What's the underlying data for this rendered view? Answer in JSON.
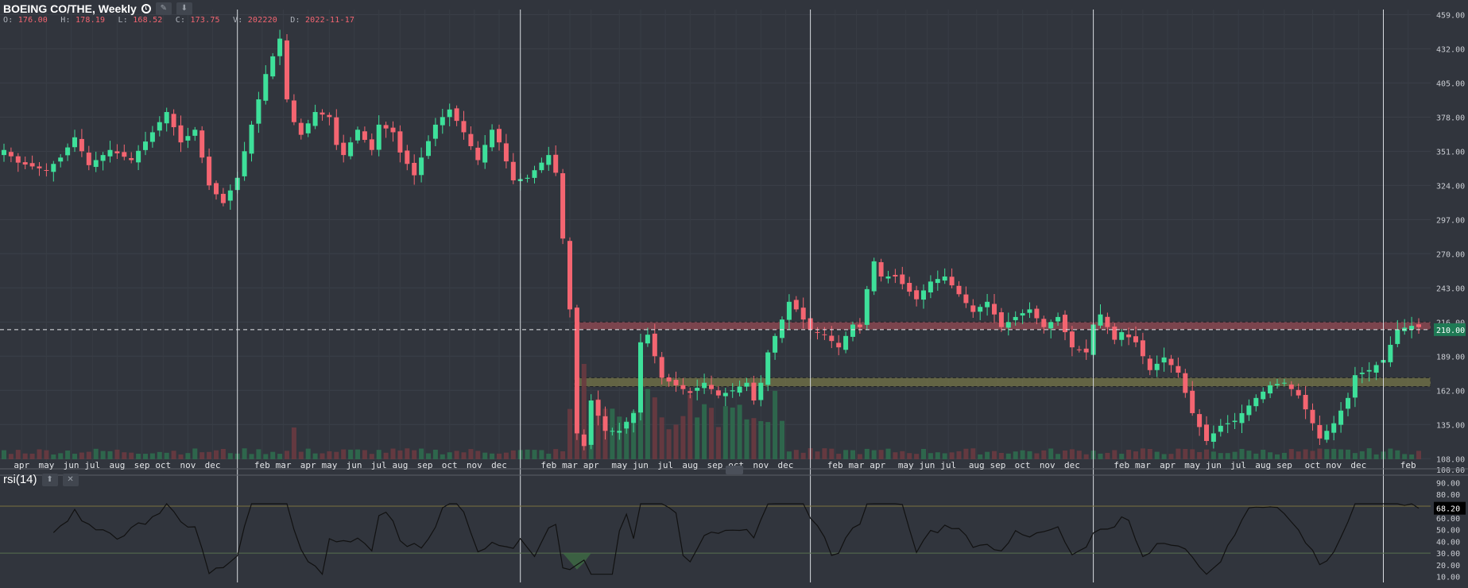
{
  "header": {
    "title": "BOEING CO/THE, Weekly",
    "legend": [
      {
        "label": "O:",
        "value": "176.00"
      },
      {
        "label": "H:",
        "value": "178.19"
      },
      {
        "label": "L:",
        "value": "168.52"
      },
      {
        "label": "C:",
        "value": "173.75"
      },
      {
        "label": "V:",
        "value": "202220"
      },
      {
        "label": "D:",
        "value": "2022-11-17"
      }
    ],
    "edit_icon": "pencil-icon",
    "move_down_icon": "arrow-down-icon"
  },
  "rsi_panel": {
    "title": "rsi(14)",
    "move_icon": "arrow-down-icon",
    "close_icon": "close-icon",
    "current_value": "68.20"
  },
  "colors": {
    "background": "#31353d",
    "up": "#3ee09a",
    "down": "#f46571",
    "resistance_zone": "#b8515b",
    "support_zone": "#8c8a4a",
    "rsi_line": "#111111",
    "price_tag": "#1f7a55"
  },
  "chart_data": [
    {
      "type": "candlestick",
      "title": "BOEING CO/THE, Weekly",
      "y_ticks": [
        108,
        135,
        162,
        189,
        216,
        243,
        270,
        297,
        324,
        351,
        378,
        405,
        432,
        459
      ],
      "y_tick_labels": [
        "108.00",
        "135.00",
        "162.00",
        "189.00",
        "216.00",
        "243.00",
        "270.00",
        "297.00",
        "324.00",
        "351.00",
        "378.00",
        "405.00",
        "432.00",
        "459.00"
      ],
      "y_bottom_label": "100.00",
      "ylim": [
        100,
        463
      ],
      "current_price": 210,
      "current_price_label": "210.00",
      "zones": [
        {
          "name": "resistance",
          "from_week": 81,
          "low": 210,
          "high": 216
        },
        {
          "name": "support",
          "from_week": 81,
          "low": 165,
          "high": 172
        }
      ],
      "year_separators": [
        33,
        73,
        114,
        154,
        195
      ],
      "x_month_labels": [
        {
          "w": 2.5,
          "t": "apr"
        },
        {
          "w": 6,
          "t": "may"
        },
        {
          "w": 9.5,
          "t": "jun"
        },
        {
          "w": 12.5,
          "t": "jul"
        },
        {
          "w": 16,
          "t": "aug"
        },
        {
          "w": 19.5,
          "t": "sep"
        },
        {
          "w": 22.5,
          "t": "oct"
        },
        {
          "w": 26,
          "t": "nov"
        },
        {
          "w": 29.5,
          "t": "dec"
        },
        {
          "w": 36.5,
          "t": "feb"
        },
        {
          "w": 39.5,
          "t": "mar"
        },
        {
          "w": 43,
          "t": "apr"
        },
        {
          "w": 46,
          "t": "may"
        },
        {
          "w": 49.5,
          "t": "jun"
        },
        {
          "w": 53,
          "t": "jul"
        },
        {
          "w": 56,
          "t": "aug"
        },
        {
          "w": 59.5,
          "t": "sep"
        },
        {
          "w": 63,
          "t": "oct"
        },
        {
          "w": 66.5,
          "t": "nov"
        },
        {
          "w": 70,
          "t": "dec"
        },
        {
          "w": 77,
          "t": "feb"
        },
        {
          "w": 80,
          "t": "mar"
        },
        {
          "w": 83,
          "t": "apr"
        },
        {
          "w": 87,
          "t": "may"
        },
        {
          "w": 90,
          "t": "jun"
        },
        {
          "w": 93.5,
          "t": "jul"
        },
        {
          "w": 97,
          "t": "aug"
        },
        {
          "w": 100.5,
          "t": "sep"
        },
        {
          "w": 103.5,
          "t": "oct"
        },
        {
          "w": 107,
          "t": "nov"
        },
        {
          "w": 110.5,
          "t": "dec"
        },
        {
          "w": 117.5,
          "t": "feb"
        },
        {
          "w": 120.5,
          "t": "mar"
        },
        {
          "w": 123.5,
          "t": "apr"
        },
        {
          "w": 127.5,
          "t": "may"
        },
        {
          "w": 130.5,
          "t": "jun"
        },
        {
          "w": 133.5,
          "t": "jul"
        },
        {
          "w": 137.5,
          "t": "aug"
        },
        {
          "w": 140.5,
          "t": "sep"
        },
        {
          "w": 144,
          "t": "oct"
        },
        {
          "w": 147.5,
          "t": "nov"
        },
        {
          "w": 151,
          "t": "dec"
        },
        {
          "w": 158,
          "t": "feb"
        },
        {
          "w": 161,
          "t": "mar"
        },
        {
          "w": 164.5,
          "t": "apr"
        },
        {
          "w": 168,
          "t": "may"
        },
        {
          "w": 171,
          "t": "jun"
        },
        {
          "w": 174.5,
          "t": "jul"
        },
        {
          "w": 178,
          "t": "aug"
        },
        {
          "w": 181,
          "t": "sep"
        },
        {
          "w": 185,
          "t": "oct"
        },
        {
          "w": 188,
          "t": "nov"
        },
        {
          "w": 191.5,
          "t": "dec"
        },
        {
          "w": 198.5,
          "t": "feb"
        }
      ],
      "close_anchors": [
        [
          0,
          352
        ],
        [
          2,
          342
        ],
        [
          6,
          336
        ],
        [
          8,
          346
        ],
        [
          10,
          362
        ],
        [
          12,
          340
        ],
        [
          15,
          352
        ],
        [
          18,
          344
        ],
        [
          21,
          366
        ],
        [
          23,
          382
        ],
        [
          25,
          358
        ],
        [
          27,
          368
        ],
        [
          29,
          324
        ],
        [
          31,
          310
        ],
        [
          33,
          330
        ],
        [
          35,
          372
        ],
        [
          37,
          412
        ],
        [
          38,
          426
        ],
        [
          39,
          440
        ],
        [
          40,
          392
        ],
        [
          41,
          374
        ],
        [
          42,
          364
        ],
        [
          44,
          382
        ],
        [
          46,
          378
        ],
        [
          47,
          356
        ],
        [
          48,
          348
        ],
        [
          50,
          368
        ],
        [
          52,
          352
        ],
        [
          53,
          372
        ],
        [
          55,
          366
        ],
        [
          56,
          350
        ],
        [
          58,
          332
        ],
        [
          59,
          346
        ],
        [
          61,
          372
        ],
        [
          63,
          384
        ],
        [
          65,
          366
        ],
        [
          67,
          344
        ],
        [
          69,
          368
        ],
        [
          70,
          358
        ],
        [
          72,
          328
        ],
        [
          74,
          330
        ],
        [
          77,
          348
        ],
        [
          78,
          334
        ],
        [
          79,
          282
        ],
        [
          80,
          226
        ],
        [
          81,
          128
        ],
        [
          82,
          118
        ],
        [
          83,
          154
        ],
        [
          85,
          130
        ],
        [
          87,
          130
        ],
        [
          89,
          144
        ],
        [
          90,
          200
        ],
        [
          91,
          206
        ],
        [
          93,
          172
        ],
        [
          95,
          166
        ],
        [
          97,
          160
        ],
        [
          99,
          168
        ],
        [
          101,
          158
        ],
        [
          103,
          162
        ],
        [
          105,
          168
        ],
        [
          106,
          154
        ],
        [
          107,
          168
        ],
        [
          108,
          192
        ],
        [
          110,
          218
        ],
        [
          111,
          232
        ],
        [
          112,
          226
        ],
        [
          114,
          210
        ],
        [
          116,
          206
        ],
        [
          118,
          196
        ],
        [
          120,
          214
        ],
        [
          121,
          212
        ],
        [
          122,
          242
        ],
        [
          123,
          264
        ],
        [
          124,
          252
        ],
        [
          126,
          252
        ],
        [
          129,
          234
        ],
        [
          131,
          248
        ],
        [
          133,
          252
        ],
        [
          135,
          238
        ],
        [
          137,
          224
        ],
        [
          139,
          232
        ],
        [
          141,
          212
        ],
        [
          143,
          220
        ],
        [
          145,
          226
        ],
        [
          147,
          212
        ],
        [
          149,
          220
        ],
        [
          151,
          196
        ],
        [
          153,
          192
        ],
        [
          154,
          214
        ],
        [
          155,
          222
        ],
        [
          157,
          202
        ],
        [
          158,
          208
        ],
        [
          160,
          200
        ],
        [
          162,
          178
        ],
        [
          164,
          188
        ],
        [
          166,
          176
        ],
        [
          168,
          144
        ],
        [
          170,
          122
        ],
        [
          172,
          134
        ],
        [
          174,
          138
        ],
        [
          175,
          144
        ],
        [
          177,
          156
        ],
        [
          179,
          166
        ],
        [
          181,
          168
        ],
        [
          183,
          158
        ],
        [
          185,
          136
        ],
        [
          186,
          124
        ],
        [
          188,
          136
        ],
        [
          190,
          156
        ],
        [
          191,
          174
        ],
        [
          193,
          178
        ],
        [
          195,
          186
        ],
        [
          196,
          198
        ],
        [
          197,
          210
        ],
        [
          199,
          213
        ],
        [
          200,
          212
        ]
      ]
    },
    {
      "type": "line",
      "title": "rsi(14)",
      "y_ticks": [
        10,
        20,
        30,
        40,
        50,
        60,
        70,
        80,
        90
      ],
      "y_tick_labels": [
        "10.00",
        "20.00",
        "30.00",
        "40.00",
        "50.00",
        "60.00",
        "70.00",
        "80.00",
        "90.00"
      ],
      "ylim": [
        5,
        93
      ],
      "overbought": 70,
      "oversold": 30,
      "current": 68.2
    }
  ]
}
